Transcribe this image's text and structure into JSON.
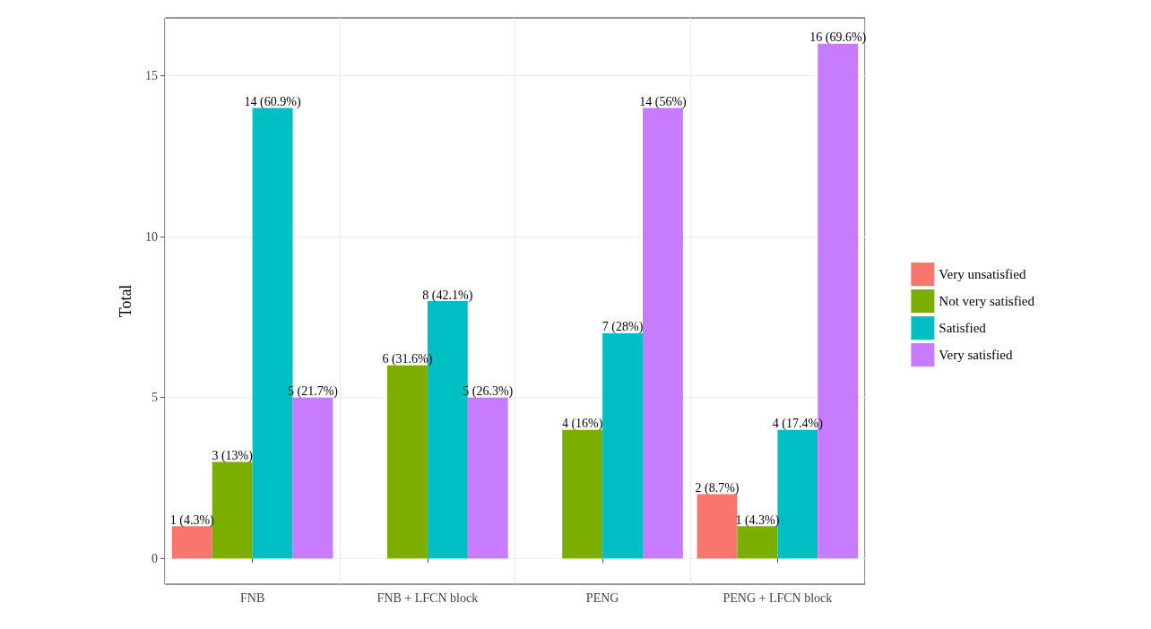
{
  "chart_data": {
    "type": "bar",
    "ylabel": "Total",
    "categories": [
      "FNB",
      "FNB + LFCN block",
      "PENG",
      "PENG + LFCN block"
    ],
    "series": [
      {
        "name": "Very unsatisfied",
        "color": "#f8766d",
        "values": [
          1,
          null,
          null,
          2
        ],
        "value_labels": [
          "1 (4.3%)",
          null,
          null,
          "2 (8.7%)"
        ]
      },
      {
        "name": "Not very satisfied",
        "color": "#7cae00",
        "values": [
          3,
          6,
          4,
          1
        ],
        "value_labels": [
          "3 (13%)",
          "6 (31.6%)",
          "4 (16%)",
          "1 (4.3%)"
        ]
      },
      {
        "name": "Satisfied",
        "color": "#00bfc4",
        "values": [
          14,
          8,
          7,
          4
        ],
        "value_labels": [
          "14 (60.9%)",
          "8 (42.1%)",
          "7 (28%)",
          "4 (17.4%)"
        ]
      },
      {
        "name": "Very satisfied",
        "color": "#c77cff",
        "values": [
          5,
          5,
          14,
          16
        ],
        "value_labels": [
          "5 (21.7%)",
          "5 (26.3%)",
          "14 (56%)",
          "16 (69.6%)"
        ]
      }
    ],
    "ylim": [
      -0.8,
      16.8
    ],
    "yticks": [
      0,
      5,
      10,
      15
    ],
    "grid": true,
    "legend": "right"
  }
}
